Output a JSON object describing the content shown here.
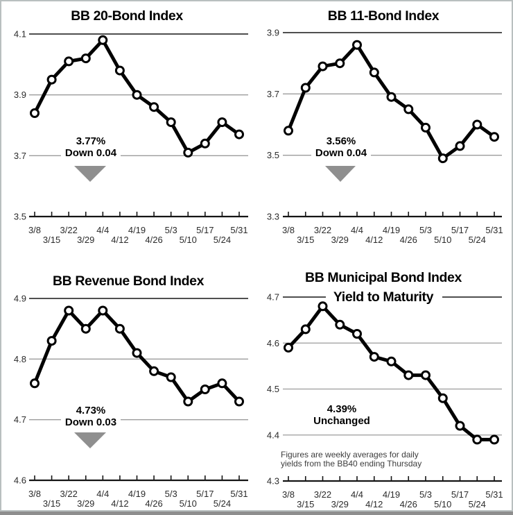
{
  "style": {
    "background": "#ffffff",
    "border_color": "#b9bfbf",
    "line_color": "#000000",
    "marker_fill": "#ffffff",
    "grid_color": "#9b9b9b",
    "strong_line_color": "#151515",
    "triangle_color": "#8f8f8f",
    "text_color": "#2b2b2b"
  },
  "chart_data": [
    {
      "type": "line",
      "id": "bb-20-bond-index",
      "title": "BB 20-Bond Index",
      "title_lines": [
        "BB 20-Bond Index"
      ],
      "categories": [
        "3/8",
        "3/15",
        "3/22",
        "3/29",
        "4/4",
        "4/12",
        "4/19",
        "4/26",
        "5/3",
        "5/10",
        "5/17",
        "5/24",
        "5/31"
      ],
      "values": [
        3.84,
        3.95,
        4.01,
        4.02,
        4.08,
        3.98,
        3.9,
        3.86,
        3.81,
        3.71,
        3.74,
        3.81,
        3.77
      ],
      "yticks": [
        4.1,
        3.9,
        3.7,
        3.5
      ],
      "ylim": [
        3.5,
        4.1
      ],
      "grid": "horizontal",
      "marker": "open-circle",
      "annotation": {
        "value": "3.77%",
        "change": "Down 0.04",
        "direction": "down"
      }
    },
    {
      "type": "line",
      "id": "bb-11-bond-index",
      "title": "BB 11-Bond Index",
      "title_lines": [
        "BB 11-Bond Index"
      ],
      "categories": [
        "3/8",
        "3/15",
        "3/22",
        "3/29",
        "4/4",
        "4/12",
        "4/19",
        "4/26",
        "5/3",
        "5/10",
        "5/17",
        "5/24",
        "5/31"
      ],
      "values": [
        3.58,
        3.72,
        3.79,
        3.8,
        3.86,
        3.77,
        3.69,
        3.65,
        3.59,
        3.49,
        3.53,
        3.6,
        3.56
      ],
      "yticks": [
        3.9,
        3.7,
        3.5,
        3.3
      ],
      "ylim": [
        3.3,
        3.9
      ],
      "grid": "horizontal",
      "marker": "open-circle",
      "annotation": {
        "value": "3.56%",
        "change": "Down 0.04",
        "direction": "down"
      }
    },
    {
      "type": "line",
      "id": "bb-revenue-bond-index",
      "title": "BB Revenue Bond Index",
      "title_lines": [
        "BB Revenue Bond Index"
      ],
      "categories": [
        "3/8",
        "3/15",
        "3/22",
        "3/29",
        "4/4",
        "4/12",
        "4/19",
        "4/26",
        "5/3",
        "5/10",
        "5/17",
        "5/24",
        "5/31"
      ],
      "values": [
        4.76,
        4.83,
        4.88,
        4.85,
        4.88,
        4.85,
        4.81,
        4.78,
        4.77,
        4.73,
        4.75,
        4.76,
        4.73
      ],
      "yticks": [
        4.9,
        4.8,
        4.7,
        4.6
      ],
      "ylim": [
        4.6,
        4.9
      ],
      "grid": "horizontal",
      "marker": "open-circle",
      "annotation": {
        "value": "4.73%",
        "change": "Down 0.03",
        "direction": "down"
      }
    },
    {
      "type": "line",
      "id": "bb-municipal-bond-index-yield-to-maturity",
      "title": "BB Municipal Bond Index Yield to Maturity",
      "title_lines": [
        "BB Municipal Bond Index",
        "Yield to Maturity"
      ],
      "categories": [
        "3/8",
        "3/15",
        "3/22",
        "3/29",
        "4/4",
        "4/12",
        "4/19",
        "4/26",
        "5/3",
        "5/10",
        "5/17",
        "5/24",
        "5/31"
      ],
      "values": [
        4.59,
        4.63,
        4.68,
        4.64,
        4.62,
        4.57,
        4.56,
        4.53,
        4.53,
        4.48,
        4.42,
        4.39,
        4.39
      ],
      "yticks": [
        4.7,
        4.6,
        4.5,
        4.4,
        4.3
      ],
      "ylim": [
        4.3,
        4.7
      ],
      "grid": "horizontal",
      "marker": "open-circle",
      "annotation": {
        "value": "4.39%",
        "change": "Unchanged",
        "direction": "none"
      },
      "note_lines": [
        "Figures are weekly averages for daily",
        "yields from the BB40 ending Thursday"
      ]
    }
  ]
}
